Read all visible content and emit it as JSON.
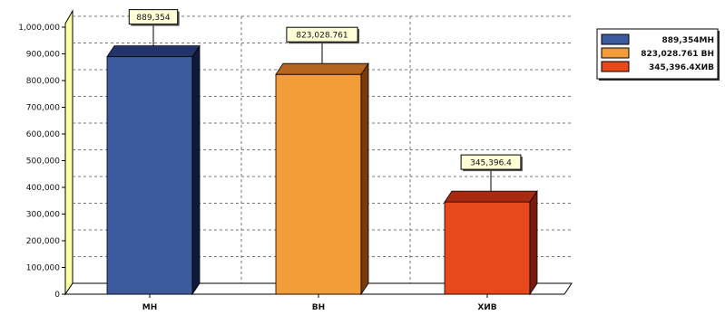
{
  "chart_data": {
    "type": "bar",
    "categories": [
      "MH",
      "BH",
      "ХИВ"
    ],
    "values": [
      889354,
      823028.761,
      345396.4
    ],
    "data_labels": [
      "889,354",
      "823,028.761",
      "345,396.4"
    ],
    "ylim": [
      0,
      1000000
    ],
    "y_ticks": [
      0,
      100000,
      200000,
      300000,
      400000,
      500000,
      600000,
      700000,
      800000,
      900000,
      1000000
    ],
    "y_tick_labels": [
      "0",
      "100,000",
      "200,000",
      "300,000",
      "400,000",
      "500,000",
      "600,000",
      "700,000",
      "800,000",
      "900,000",
      "1,000,000"
    ],
    "grid": true,
    "legend_position": "top-right",
    "legend": [
      "889,354MH",
      "823,028.761 BH",
      "345,396.4ХИВ"
    ],
    "colors": [
      "#3d5a9c",
      "#f39c3a",
      "#e8491a"
    ],
    "side_colors": [
      "#0f1a3a",
      "#7a3a0a",
      "#7a1a0a"
    ],
    "top_colors": [
      "#23346b",
      "#b5651d",
      "#a82a10"
    ],
    "wall_color": "#ffffa8",
    "title": "",
    "xlabel": "",
    "ylabel": ""
  }
}
